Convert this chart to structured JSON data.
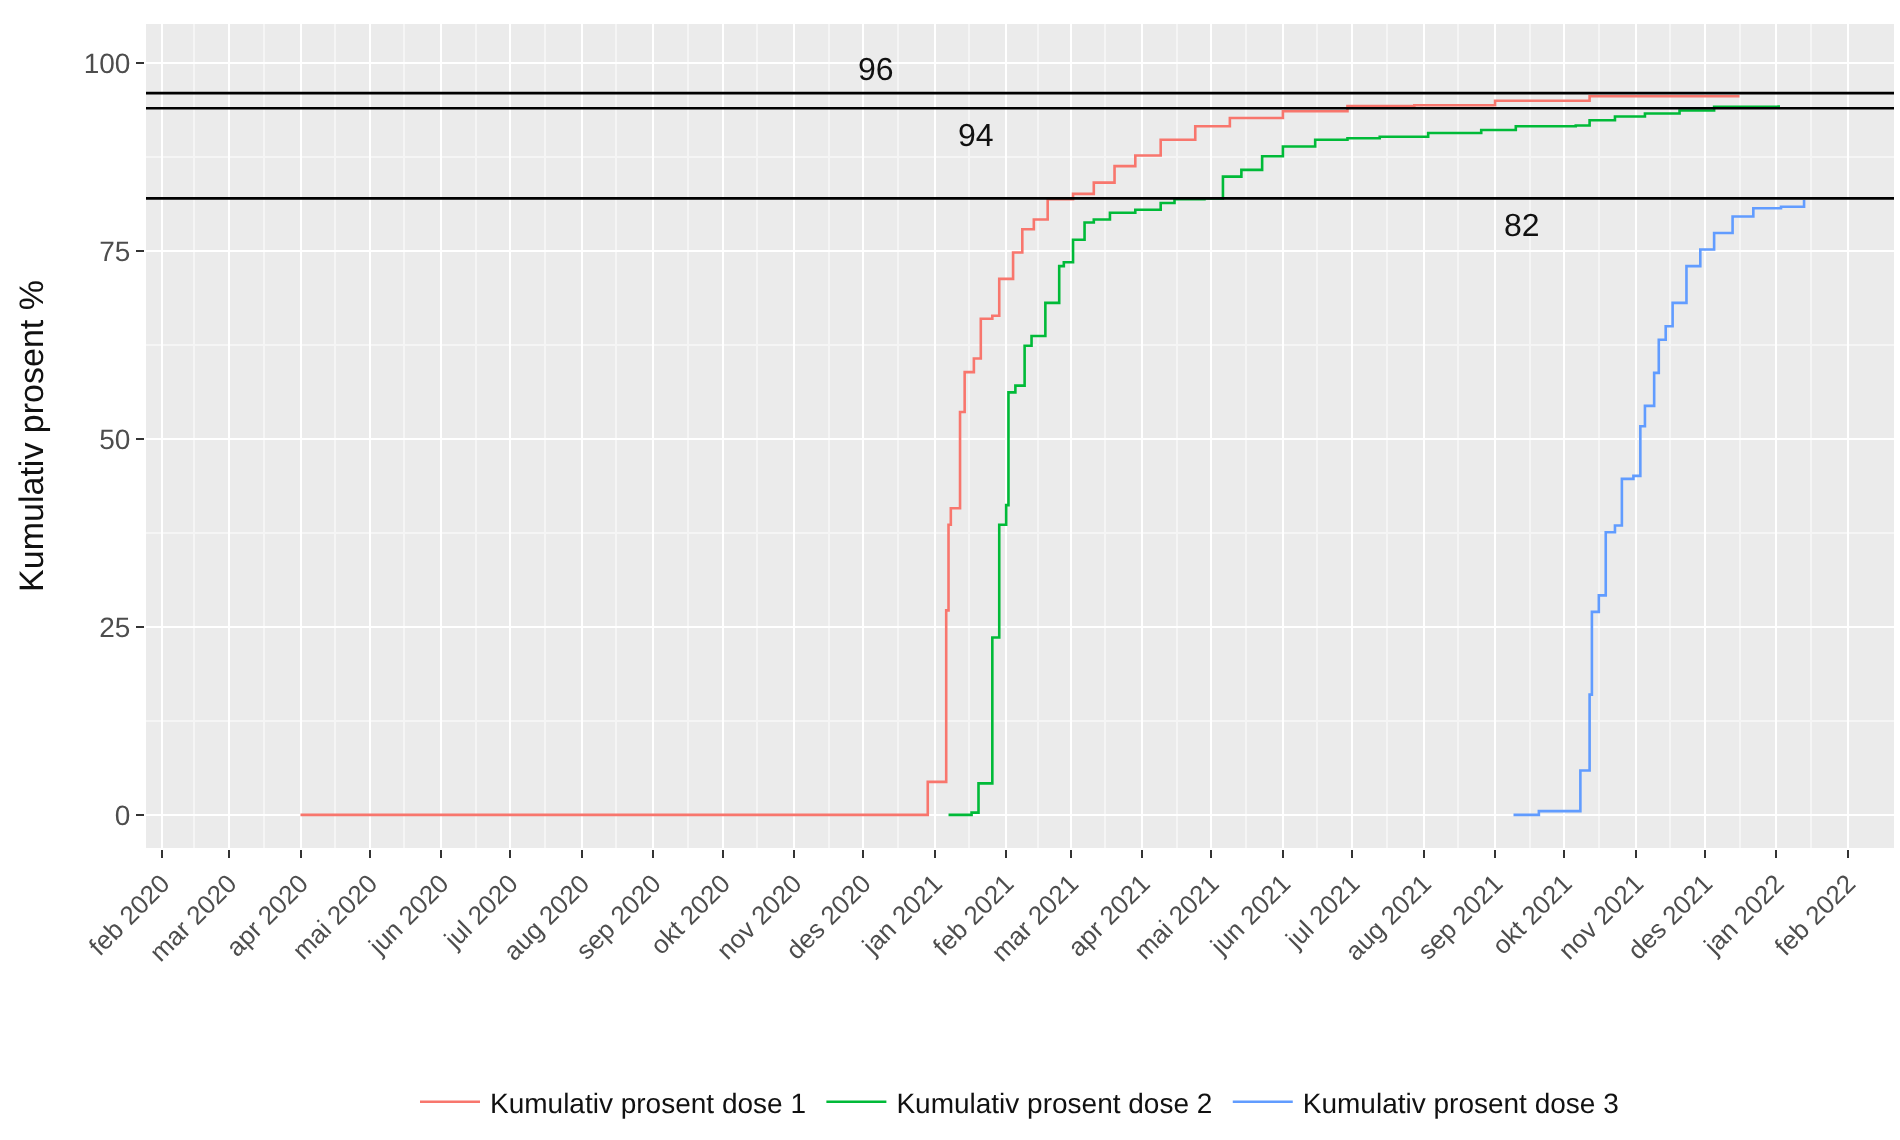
{
  "chart_data": {
    "type": "step",
    "ylabel": "Kumulativ prosent %",
    "xlim": [
      "2020-01-25",
      "2022-02-21"
    ],
    "ylim": [
      -4.4,
      105.2
    ],
    "xticks": [
      {
        "value": "2020-02-01",
        "label": "feb 2020"
      },
      {
        "value": "2020-03-01",
        "label": "mar 2020"
      },
      {
        "value": "2020-04-01",
        "label": "apr 2020"
      },
      {
        "value": "2020-05-01",
        "label": "mai 2020"
      },
      {
        "value": "2020-06-01",
        "label": "jun 2020"
      },
      {
        "value": "2020-07-01",
        "label": "jul 2020"
      },
      {
        "value": "2020-08-01",
        "label": "aug 2020"
      },
      {
        "value": "2020-09-01",
        "label": "sep 2020"
      },
      {
        "value": "2020-10-01",
        "label": "okt 2020"
      },
      {
        "value": "2020-11-01",
        "label": "nov 2020"
      },
      {
        "value": "2020-12-01",
        "label": "des 2020"
      },
      {
        "value": "2021-01-01",
        "label": "jan 2021"
      },
      {
        "value": "2021-02-01",
        "label": "feb 2021"
      },
      {
        "value": "2021-03-01",
        "label": "mar 2021"
      },
      {
        "value": "2021-04-01",
        "label": "apr 2021"
      },
      {
        "value": "2021-05-01",
        "label": "mai 2021"
      },
      {
        "value": "2021-06-01",
        "label": "jun 2021"
      },
      {
        "value": "2021-07-01",
        "label": "jul 2021"
      },
      {
        "value": "2021-08-01",
        "label": "aug 2021"
      },
      {
        "value": "2021-09-01",
        "label": "sep 2021"
      },
      {
        "value": "2021-10-01",
        "label": "okt 2021"
      },
      {
        "value": "2021-11-01",
        "label": "nov 2021"
      },
      {
        "value": "2021-12-01",
        "label": "des 2021"
      },
      {
        "value": "2022-01-01",
        "label": "jan 2022"
      },
      {
        "value": "2022-02-01",
        "label": "feb 2022"
      }
    ],
    "yticks": [
      0,
      25,
      50,
      75,
      100
    ],
    "grid": true,
    "legend": "bottom",
    "line_style": "solid",
    "marker": "none",
    "series": [
      {
        "name": "Kumulativ prosent dose 1",
        "color": "#f8766d",
        "x": [
          "2020-04-01",
          "2020-12-28",
          "2020-12-29",
          "2021-01-05",
          "2021-01-06",
          "2021-01-07",
          "2021-01-08",
          "2021-01-11",
          "2021-01-12",
          "2021-01-14",
          "2021-01-18",
          "2021-01-21",
          "2021-01-26",
          "2021-01-29",
          "2021-02-04",
          "2021-02-08",
          "2021-02-13",
          "2021-02-19",
          "2021-03-02",
          "2021-03-11",
          "2021-03-20",
          "2021-03-29",
          "2021-04-09",
          "2021-04-24",
          "2021-05-09",
          "2021-06-01",
          "2021-06-29",
          "2021-07-28",
          "2021-09-01",
          "2021-10-12",
          "2021-12-16"
        ],
        "values": [
          0,
          0,
          4.4,
          4.4,
          27.2,
          38.6,
          40.8,
          40.8,
          53.6,
          58.9,
          60.7,
          66.0,
          66.4,
          71.3,
          74.8,
          77.9,
          79.2,
          81.9,
          82.6,
          84.1,
          86.3,
          87.7,
          89.8,
          91.6,
          92.7,
          93.6,
          94.3,
          94.4,
          95.0,
          95.6,
          95.6
        ]
      },
      {
        "name": "Kumulativ prosent dose 2",
        "color": "#00ba38",
        "x": [
          "2021-01-07",
          "2021-01-17",
          "2021-01-20",
          "2021-01-24",
          "2021-01-26",
          "2021-01-29",
          "2021-02-01",
          "2021-02-02",
          "2021-02-05",
          "2021-02-09",
          "2021-02-12",
          "2021-02-18",
          "2021-02-24",
          "2021-02-26",
          "2021-03-02",
          "2021-03-07",
          "2021-03-11",
          "2021-03-18",
          "2021-03-29",
          "2021-04-09",
          "2021-04-15",
          "2021-04-28",
          "2021-05-06",
          "2021-05-14",
          "2021-05-23",
          "2021-06-01",
          "2021-06-15",
          "2021-06-29",
          "2021-07-13",
          "2021-08-03",
          "2021-08-26",
          "2021-09-10",
          "2021-10-06",
          "2021-10-12",
          "2021-10-23",
          "2021-11-05",
          "2021-11-20",
          "2021-12-05",
          "2022-01-02"
        ],
        "values": [
          0,
          0.3,
          4.2,
          4.2,
          23.6,
          38.6,
          41.2,
          56.2,
          57.1,
          62.4,
          63.7,
          68.1,
          73.0,
          73.5,
          76.5,
          78.8,
          79.2,
          80.1,
          80.5,
          81.4,
          81.9,
          82.0,
          84.9,
          85.8,
          87.6,
          88.9,
          89.8,
          90.0,
          90.2,
          90.7,
          91.1,
          91.6,
          91.7,
          92.4,
          92.9,
          93.3,
          93.7,
          94.2,
          94.4
        ]
      },
      {
        "name": "Kumulativ prosent dose 3",
        "color": "#619cff",
        "x": [
          "2021-09-09",
          "2021-09-20",
          "2021-10-08",
          "2021-10-12",
          "2021-10-13",
          "2021-10-16",
          "2021-10-19",
          "2021-10-23",
          "2021-10-26",
          "2021-10-31",
          "2021-11-03",
          "2021-11-05",
          "2021-11-09",
          "2021-11-11",
          "2021-11-14",
          "2021-11-17",
          "2021-11-23",
          "2021-11-29",
          "2021-12-05",
          "2021-12-13",
          "2021-12-22",
          "2022-01-03",
          "2022-01-13"
        ],
        "values": [
          0,
          0.5,
          5.9,
          16.0,
          27.0,
          29.2,
          37.6,
          38.5,
          44.7,
          45.1,
          51.7,
          54.4,
          58.8,
          63.2,
          65.0,
          68.1,
          73.0,
          75.2,
          77.4,
          79.6,
          80.7,
          80.9,
          81.8
        ]
      }
    ],
    "ref_lines": [
      {
        "axis": "y",
        "value": 96,
        "color": "#000000",
        "label": "96"
      },
      {
        "axis": "y",
        "value": 94,
        "color": "#000000",
        "label": "94"
      },
      {
        "axis": "y",
        "value": 82,
        "color": "#000000",
        "label": "82"
      }
    ]
  }
}
